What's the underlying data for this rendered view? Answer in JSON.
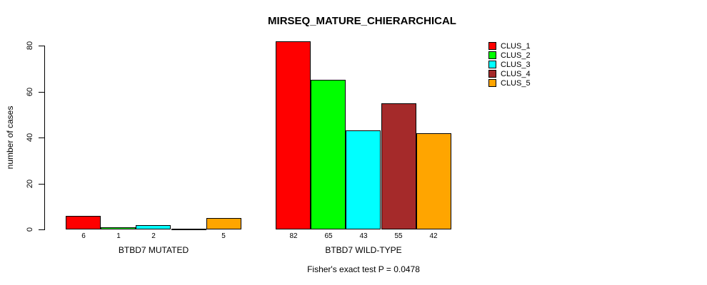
{
  "chart_data": {
    "type": "bar",
    "title": "MIRSEQ_MATURE_CHIERARCHICAL",
    "xlabel": "",
    "ylabel": "number of cases",
    "ylim": [
      0,
      80
    ],
    "yticks": [
      0,
      20,
      40,
      60,
      80
    ],
    "grid": false,
    "legend_position": "topright",
    "categories": [
      "BTBD7 MUTATED",
      "BTBD7 WILD-TYPE"
    ],
    "series": [
      {
        "name": "CLUS_1",
        "color": "#ff0000",
        "values": [
          6,
          82
        ]
      },
      {
        "name": "CLUS_2",
        "color": "#00ff00",
        "values": [
          1,
          65
        ]
      },
      {
        "name": "CLUS_3",
        "color": "#00ffff",
        "values": [
          2,
          43
        ]
      },
      {
        "name": "CLUS_4",
        "color": "#a52a2a",
        "values": [
          0,
          55
        ]
      },
      {
        "name": "CLUS_5",
        "color": "#ffa500",
        "values": [
          5,
          42
        ]
      }
    ],
    "bar_value_labels": [
      [
        "6",
        "1",
        "2",
        "",
        "5"
      ],
      [
        "82",
        "65",
        "43",
        "55",
        "42"
      ]
    ],
    "annotation": "Fisher's exact test P = 0.0478"
  }
}
